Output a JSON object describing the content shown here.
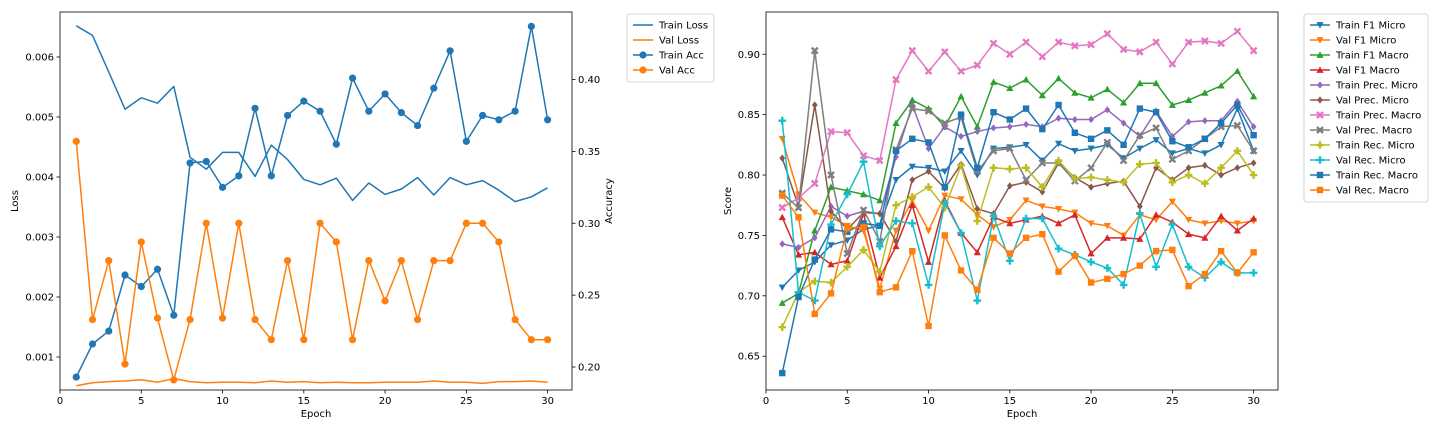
{
  "chart_data": [
    {
      "type": "line",
      "xlabel": "Epoch",
      "ylabel": "Loss",
      "y2label": "Accuracy",
      "xlim": [
        0,
        31.5
      ],
      "ylim": [
        0.00045,
        0.00675
      ],
      "y2lim": [
        0.184,
        0.447
      ],
      "xticks": [
        0,
        5,
        10,
        15,
        20,
        25,
        30
      ],
      "yticks": [
        0.001,
        0.002,
        0.003,
        0.004,
        0.005,
        0.006
      ],
      "ytick_labels": [
        "0.001",
        "0.002",
        "0.003",
        "0.004",
        "0.005",
        "0.006"
      ],
      "y2ticks": [
        0.2,
        0.25,
        0.3,
        0.35,
        0.4
      ],
      "y2tick_labels": [
        "0.20",
        "0.25",
        "0.30",
        "0.35",
        "0.40"
      ],
      "grid": false,
      "legend_position": "outside-right",
      "x": [
        1,
        2,
        3,
        4,
        5,
        6,
        7,
        8,
        9,
        10,
        11,
        12,
        13,
        14,
        15,
        16,
        17,
        18,
        19,
        20,
        21,
        22,
        23,
        24,
        25,
        26,
        27,
        28,
        29,
        30
      ],
      "series": [
        {
          "name": "Train Loss",
          "axis": "left",
          "color": "#1f77b4",
          "marker": "none",
          "values": [
            0.00652,
            0.00636,
            0.00575,
            0.00513,
            0.00532,
            0.00523,
            0.00551,
            0.00433,
            0.00413,
            0.00441,
            0.00441,
            0.00401,
            0.00453,
            0.00429,
            0.00396,
            0.00387,
            0.00398,
            0.00361,
            0.0039,
            0.00371,
            0.0038,
            0.00399,
            0.0037,
            0.00399,
            0.00387,
            0.00394,
            0.00378,
            0.00359,
            0.00367,
            0.00382
          ]
        },
        {
          "name": "Val Loss",
          "axis": "left",
          "color": "#ff7f0e",
          "marker": "none",
          "values": [
            0.00052,
            0.00057,
            0.00059,
            0.0006,
            0.00062,
            0.00058,
            0.00064,
            0.00059,
            0.00057,
            0.00058,
            0.00058,
            0.00057,
            0.0006,
            0.00058,
            0.00059,
            0.00057,
            0.00058,
            0.00057,
            0.00057,
            0.00058,
            0.00058,
            0.00058,
            0.0006,
            0.00058,
            0.00058,
            0.00056,
            0.00059,
            0.00059,
            0.0006,
            0.00058
          ]
        },
        {
          "name": "Train Acc",
          "axis": "right",
          "color": "#1f77b4",
          "marker": "circle",
          "values": [
            0.193,
            0.216,
            0.225,
            0.264,
            0.256,
            0.268,
            0.236,
            0.342,
            0.343,
            0.325,
            0.333,
            0.38,
            0.333,
            0.375,
            0.385,
            0.378,
            0.355,
            0.401,
            0.378,
            0.39,
            0.377,
            0.368,
            0.394,
            0.42,
            0.357,
            0.375,
            0.372,
            0.378,
            0.437,
            0.372
          ]
        },
        {
          "name": "Val Acc",
          "axis": "right",
          "color": "#ff7f0e",
          "marker": "circle",
          "values": [
            0.357,
            0.233,
            0.274,
            0.202,
            0.287,
            0.234,
            0.191,
            0.233,
            0.3,
            0.234,
            0.3,
            0.233,
            0.219,
            0.274,
            0.219,
            0.3,
            0.287,
            0.219,
            0.274,
            0.246,
            0.274,
            0.233,
            0.274,
            0.274,
            0.3,
            0.3,
            0.287,
            0.233,
            0.219,
            0.219
          ]
        }
      ]
    },
    {
      "type": "line",
      "xlabel": "Epoch",
      "ylabel": "Score",
      "xlim": [
        0,
        31.5
      ],
      "ylim": [
        0.622,
        0.935
      ],
      "xticks": [
        0,
        5,
        10,
        15,
        20,
        25,
        30
      ],
      "yticks": [
        0.65,
        0.7,
        0.75,
        0.8,
        0.85,
        0.9
      ],
      "ytick_labels": [
        "0.65",
        "0.70",
        "0.75",
        "0.80",
        "0.85",
        "0.90"
      ],
      "grid": false,
      "legend_position": "outside-right",
      "x": [
        1,
        2,
        3,
        4,
        5,
        6,
        7,
        8,
        9,
        10,
        11,
        12,
        13,
        14,
        15,
        16,
        17,
        18,
        19,
        20,
        21,
        22,
        23,
        24,
        25,
        26,
        27,
        28,
        29,
        30
      ],
      "series": [
        {
          "name": "Train F1 Micro",
          "color": "#1f77b4",
          "marker": "triangle_down",
          "values": [
            0.707,
            0.721,
            0.728,
            0.742,
            0.746,
            0.755,
            0.758,
            0.796,
            0.807,
            0.806,
            0.803,
            0.82,
            0.8,
            0.822,
            0.823,
            0.825,
            0.812,
            0.826,
            0.82,
            0.822,
            0.825,
            0.814,
            0.822,
            0.829,
            0.818,
            0.822,
            0.818,
            0.825,
            0.855,
            0.82
          ]
        },
        {
          "name": "Val F1 Micro",
          "color": "#ff7f0e",
          "marker": "triangle_down",
          "values": [
            0.83,
            0.784,
            0.769,
            0.765,
            0.758,
            0.754,
            0.706,
            0.754,
            0.779,
            0.754,
            0.783,
            0.78,
            0.767,
            0.757,
            0.763,
            0.779,
            0.774,
            0.772,
            0.769,
            0.76,
            0.758,
            0.75,
            0.767,
            0.763,
            0.778,
            0.763,
            0.76,
            0.762,
            0.76,
            0.762
          ]
        },
        {
          "name": "Train F1 Macro",
          "color": "#2ca02c",
          "marker": "triangle_up",
          "values": [
            0.694,
            0.702,
            0.754,
            0.79,
            0.787,
            0.784,
            0.779,
            0.843,
            0.862,
            0.855,
            0.84,
            0.865,
            0.84,
            0.877,
            0.872,
            0.879,
            0.866,
            0.88,
            0.868,
            0.864,
            0.871,
            0.86,
            0.876,
            0.876,
            0.858,
            0.862,
            0.868,
            0.874,
            0.886,
            0.865
          ]
        },
        {
          "name": "Val F1 Macro",
          "color": "#d62728",
          "marker": "triangle_up",
          "values": [
            0.765,
            0.734,
            0.736,
            0.726,
            0.729,
            0.768,
            0.715,
            0.741,
            0.775,
            0.728,
            0.779,
            0.752,
            0.736,
            0.765,
            0.76,
            0.763,
            0.766,
            0.76,
            0.767,
            0.735,
            0.748,
            0.748,
            0.747,
            0.767,
            0.761,
            0.751,
            0.748,
            0.766,
            0.754,
            0.764
          ]
        },
        {
          "name": "Train Prec. Micro",
          "color": "#9467bd",
          "marker": "diamond",
          "values": [
            0.743,
            0.74,
            0.748,
            0.774,
            0.766,
            0.77,
            0.768,
            0.815,
            0.858,
            0.822,
            0.84,
            0.832,
            0.836,
            0.839,
            0.84,
            0.842,
            0.84,
            0.847,
            0.846,
            0.846,
            0.854,
            0.843,
            0.832,
            0.853,
            0.832,
            0.844,
            0.845,
            0.845,
            0.861,
            0.84
          ]
        },
        {
          "name": "Val Prec. Micro",
          "color": "#8c564b",
          "marker": "diamond",
          "values": [
            0.814,
            0.774,
            0.858,
            0.77,
            0.755,
            0.769,
            0.768,
            0.745,
            0.796,
            0.803,
            0.789,
            0.809,
            0.772,
            0.768,
            0.791,
            0.794,
            0.786,
            0.81,
            0.798,
            0.79,
            0.793,
            0.795,
            0.774,
            0.806,
            0.796,
            0.806,
            0.808,
            0.8,
            0.806,
            0.81
          ]
        },
        {
          "name": "Train Prec. Macro",
          "color": "#e377c2",
          "marker": "x",
          "values": [
            0.773,
            0.781,
            0.793,
            0.836,
            0.835,
            0.816,
            0.812,
            0.879,
            0.903,
            0.886,
            0.902,
            0.886,
            0.891,
            0.909,
            0.9,
            0.91,
            0.898,
            0.91,
            0.907,
            0.908,
            0.917,
            0.904,
            0.902,
            0.91,
            0.892,
            0.91,
            0.911,
            0.909,
            0.919,
            0.903
          ]
        },
        {
          "name": "Val Prec. Macro",
          "color": "#7f7f7f",
          "marker": "x",
          "values": [
            0.785,
            0.773,
            0.903,
            0.8,
            0.735,
            0.771,
            0.745,
            0.821,
            0.855,
            0.853,
            0.843,
            0.848,
            0.803,
            0.82,
            0.822,
            0.796,
            0.81,
            0.81,
            0.795,
            0.806,
            0.827,
            0.812,
            0.833,
            0.839,
            0.813,
            0.82,
            0.83,
            0.84,
            0.841,
            0.82
          ]
        },
        {
          "name": "Train Rec. Micro",
          "color": "#bcbd22",
          "marker": "plus",
          "values": [
            0.674,
            0.703,
            0.712,
            0.711,
            0.724,
            0.738,
            0.72,
            0.775,
            0.782,
            0.79,
            0.773,
            0.808,
            0.762,
            0.806,
            0.805,
            0.806,
            0.79,
            0.812,
            0.797,
            0.798,
            0.796,
            0.794,
            0.809,
            0.81,
            0.794,
            0.8,
            0.793,
            0.806,
            0.82,
            0.8
          ]
        },
        {
          "name": "Val Rec. Micro",
          "color": "#17becf",
          "marker": "plus",
          "values": [
            0.845,
            0.703,
            0.696,
            0.759,
            0.784,
            0.811,
            0.741,
            0.762,
            0.76,
            0.709,
            0.777,
            0.752,
            0.696,
            0.766,
            0.729,
            0.764,
            0.764,
            0.739,
            0.734,
            0.728,
            0.723,
            0.709,
            0.768,
            0.724,
            0.759,
            0.724,
            0.715,
            0.728,
            0.719,
            0.719
          ]
        },
        {
          "name": "Train Rec. Macro",
          "color": "#1f77b4",
          "marker": "square",
          "values": [
            0.636,
            0.699,
            0.73,
            0.755,
            0.753,
            0.76,
            0.758,
            0.82,
            0.83,
            0.827,
            0.79,
            0.85,
            0.806,
            0.852,
            0.846,
            0.855,
            0.838,
            0.858,
            0.835,
            0.83,
            0.837,
            0.825,
            0.855,
            0.852,
            0.828,
            0.823,
            0.83,
            0.843,
            0.858,
            0.833
          ]
        },
        {
          "name": "Val Rec. Macro",
          "color": "#ff7f0e",
          "marker": "square",
          "values": [
            0.783,
            0.765,
            0.685,
            0.702,
            0.756,
            0.757,
            0.703,
            0.707,
            0.737,
            0.675,
            0.75,
            0.721,
            0.705,
            0.748,
            0.735,
            0.748,
            0.751,
            0.72,
            0.733,
            0.711,
            0.714,
            0.718,
            0.725,
            0.737,
            0.738,
            0.708,
            0.718,
            0.737,
            0.719,
            0.736
          ]
        }
      ]
    }
  ]
}
